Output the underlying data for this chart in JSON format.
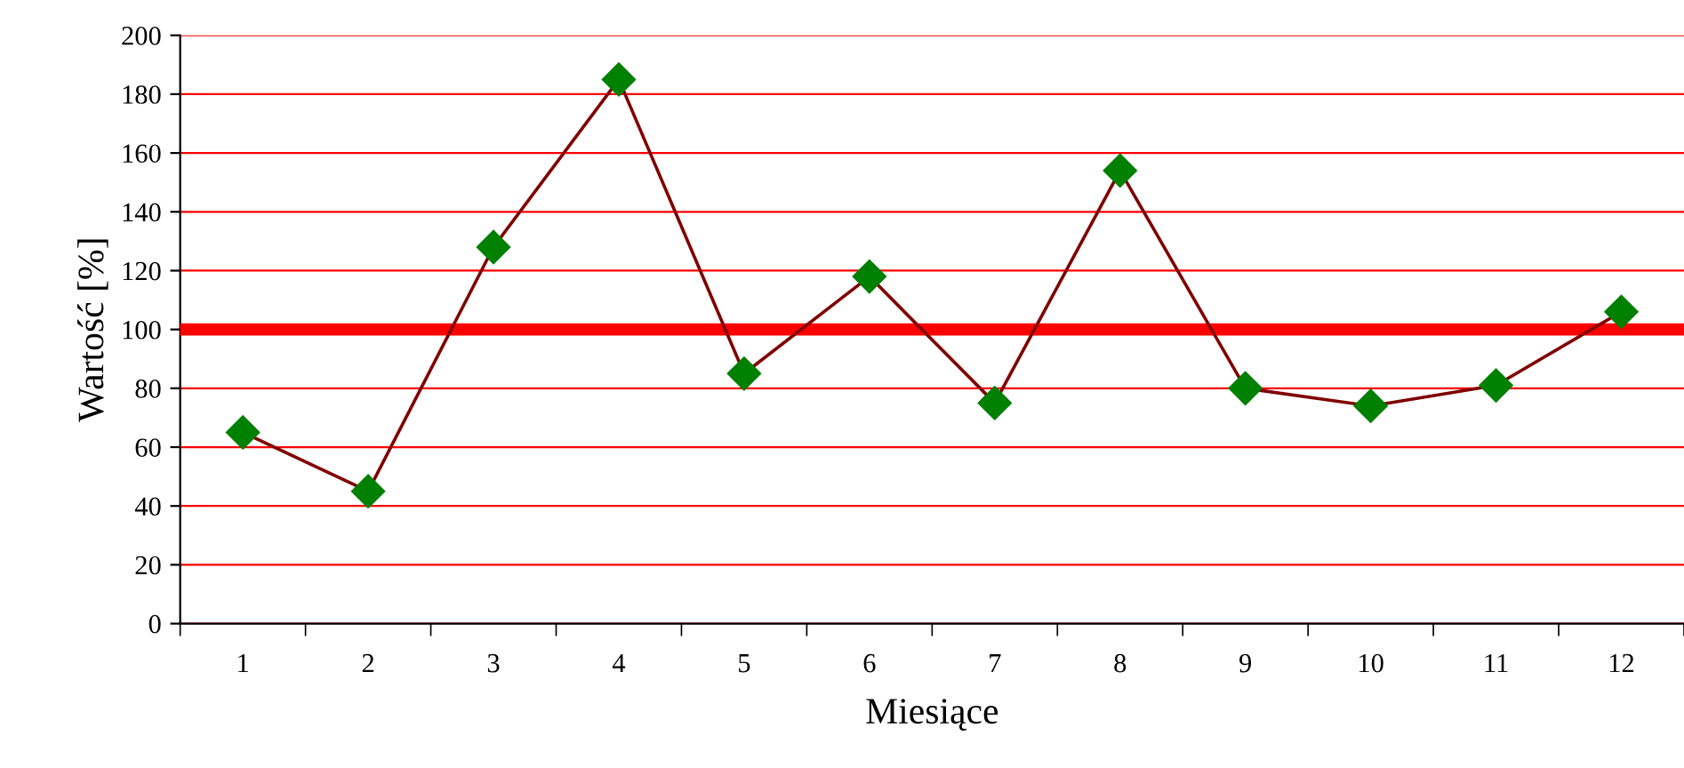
{
  "chart_data": {
    "type": "line",
    "xlabel": "Miesiące",
    "ylabel": "Wartość [%]",
    "categories": [
      "1",
      "2",
      "3",
      "4",
      "5",
      "6",
      "7",
      "8",
      "9",
      "10",
      "11",
      "12"
    ],
    "series": [
      {
        "color": "#800000",
        "values": [
          65,
          45,
          128,
          185,
          85,
          118,
          75,
          154,
          80,
          74,
          81,
          106
        ]
      }
    ],
    "marker": "diamond",
    "line_style": "solid",
    "ylim": [
      0,
      200
    ],
    "yticks": [
      0,
      20,
      40,
      60,
      80,
      100,
      120,
      140,
      160,
      180,
      200
    ],
    "grid": "y",
    "ref_lines": [
      {
        "axis": "y",
        "value": 100,
        "color": "#ff0000",
        "line_style": "solid"
      }
    ]
  }
}
